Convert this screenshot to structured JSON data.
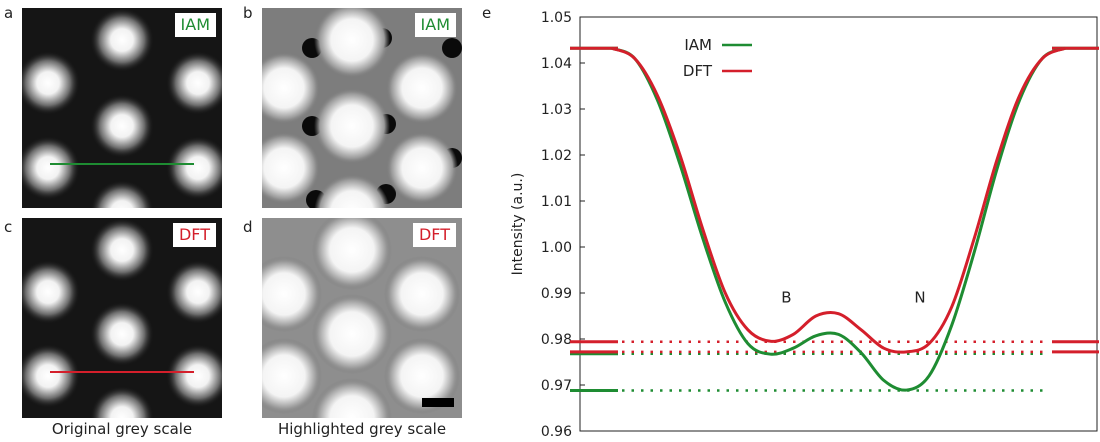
{
  "panels": {
    "a": {
      "letter": "a",
      "tag": "IAM"
    },
    "b": {
      "letter": "b",
      "tag": "IAM"
    },
    "c": {
      "letter": "c",
      "tag": "DFT"
    },
    "d": {
      "letter": "d",
      "tag": "DFT"
    },
    "e": {
      "letter": "e"
    }
  },
  "captions": {
    "left": "Original grey scale",
    "right": "Highlighted grey scale"
  },
  "colors": {
    "iam": "#1e8c32",
    "dft": "#d41f2b"
  },
  "chart_data": {
    "type": "line",
    "ylabel": "Intensity (a.u.)",
    "ylim": [
      0.96,
      1.05
    ],
    "yticks": [
      "0.96",
      "0.97",
      "0.98",
      "0.99",
      "1.00",
      "1.01",
      "1.02",
      "1.03",
      "1.04",
      "1.05"
    ],
    "legend": {
      "placement": "top-left"
    },
    "annotations": [
      {
        "text": "B",
        "x": 0.385,
        "y": 0.989
      },
      {
        "text": "N",
        "x": 0.68,
        "y": 0.989
      }
    ],
    "series": [
      {
        "name": "IAM",
        "color": "#1e8c32",
        "x": [
          0.0,
          0.05,
          0.1,
          0.15,
          0.2,
          0.25,
          0.3,
          0.35,
          0.4,
          0.45,
          0.5,
          0.55,
          0.6,
          0.65,
          0.7,
          0.75,
          0.8,
          0.85,
          0.9,
          0.95,
          1.0
        ],
        "y": [
          1.0432,
          1.041,
          1.032,
          1.018,
          1.002,
          0.988,
          0.979,
          0.9767,
          0.978,
          0.9807,
          0.981,
          0.977,
          0.971,
          0.9689,
          0.972,
          0.983,
          0.999,
          1.017,
          1.032,
          1.041,
          1.0432
        ],
        "reference_levels": [
          {
            "value": 0.9768,
            "label": ""
          },
          {
            "value": 0.9688,
            "label": ""
          }
        ]
      },
      {
        "name": "DFT",
        "color": "#d41f2b",
        "x": [
          0.0,
          0.05,
          0.1,
          0.15,
          0.2,
          0.25,
          0.3,
          0.35,
          0.4,
          0.45,
          0.5,
          0.55,
          0.6,
          0.65,
          0.7,
          0.75,
          0.8,
          0.85,
          0.9,
          0.95,
          1.0
        ],
        "y": [
          1.0432,
          1.041,
          1.033,
          1.02,
          1.004,
          0.99,
          0.982,
          0.9795,
          0.981,
          0.985,
          0.9855,
          0.982,
          0.978,
          0.9772,
          0.979,
          0.987,
          1.002,
          1.019,
          1.033,
          1.041,
          1.0432
        ],
        "reference_levels": [
          {
            "value": 0.9794,
            "label": ""
          },
          {
            "value": 0.9772,
            "label": ""
          }
        ]
      }
    ]
  }
}
